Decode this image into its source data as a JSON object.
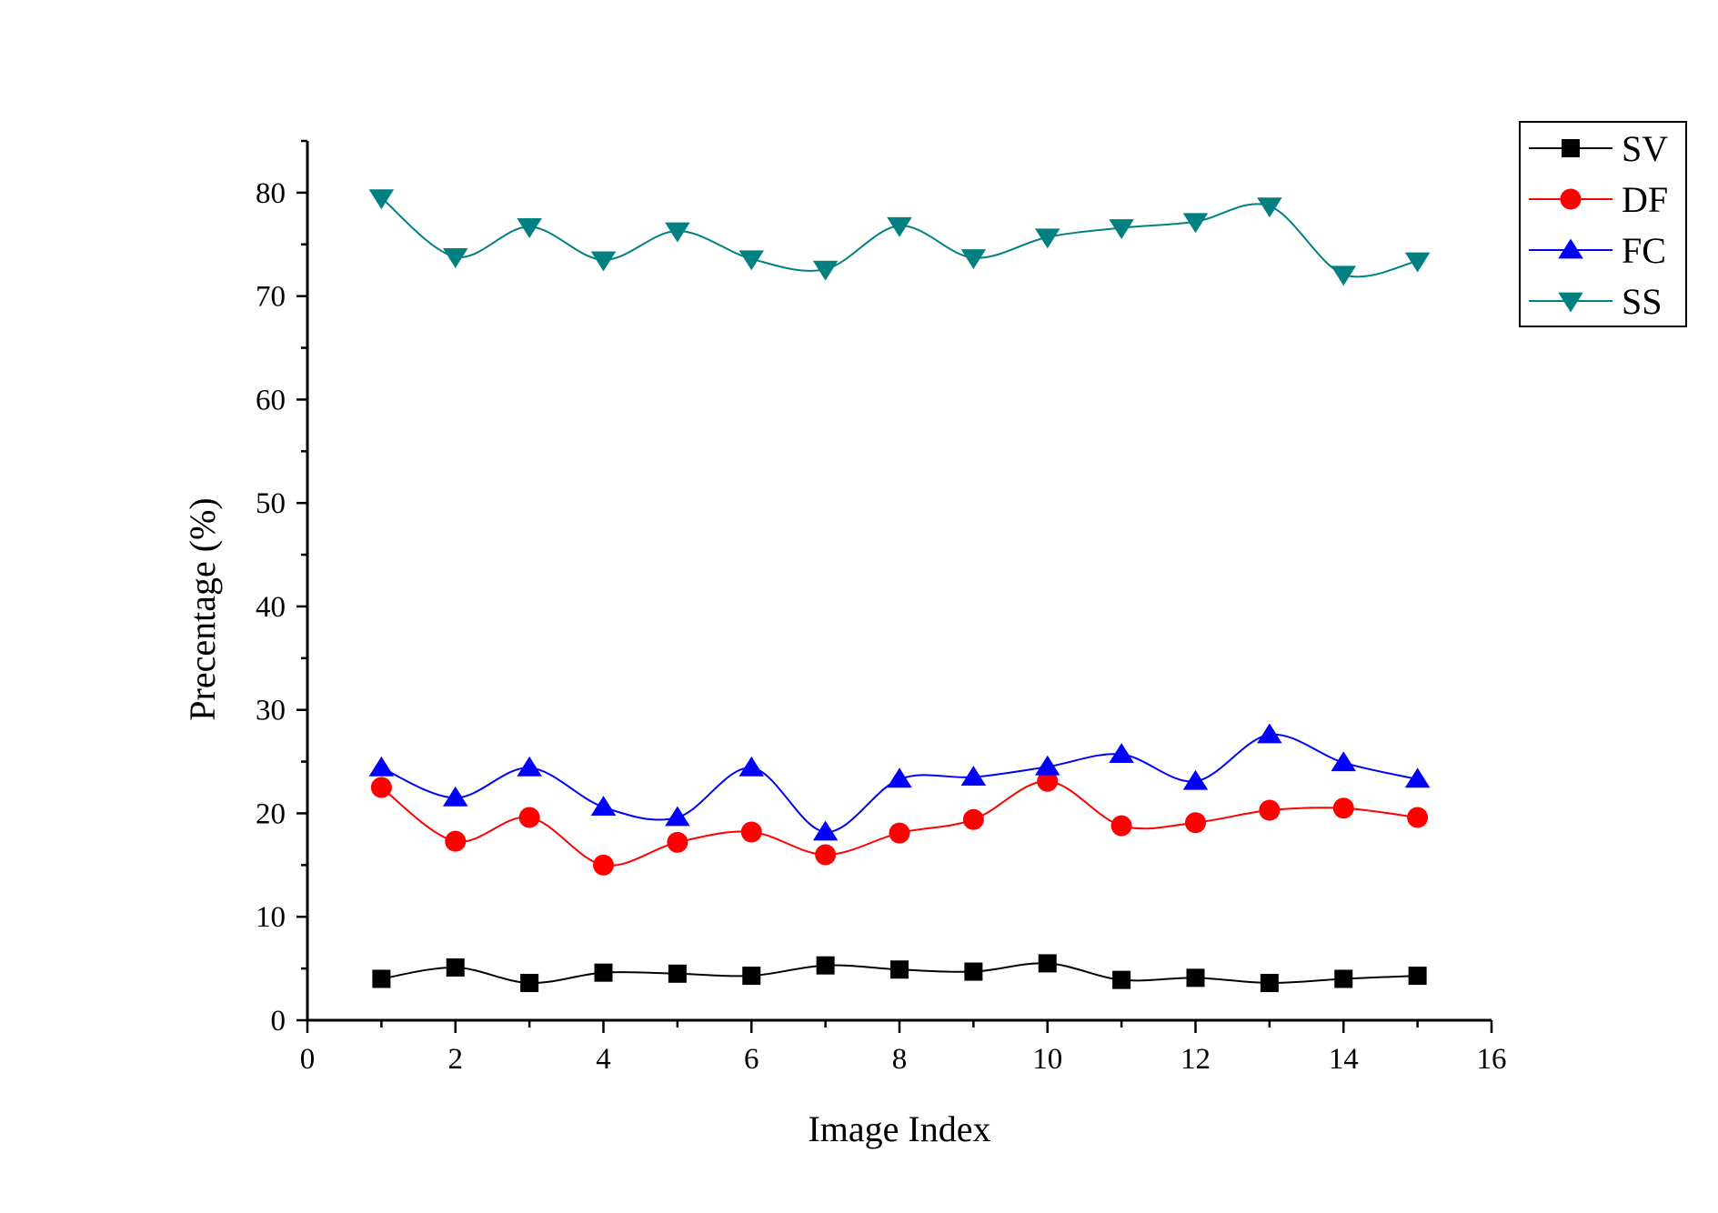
{
  "chart_data": {
    "type": "line",
    "title": "",
    "xlabel": "Image Index",
    "ylabel": "Precentage (%)",
    "xlim": [
      0,
      16
    ],
    "ylim": [
      0,
      85
    ],
    "x_ticks": [
      "0",
      "2",
      "4",
      "6",
      "8",
      "10",
      "12",
      "14",
      "16"
    ],
    "y_ticks": [
      "0",
      "10",
      "20",
      "30",
      "40",
      "50",
      "60",
      "70",
      "80"
    ],
    "grid": false,
    "legend_position": "top-right",
    "x": [
      1,
      2,
      3,
      4,
      5,
      6,
      7,
      8,
      9,
      10,
      11,
      12,
      13,
      14,
      15
    ],
    "series": [
      {
        "name": "SV",
        "color": "#000000",
        "marker": "square",
        "values": [
          4.0,
          5.1,
          3.6,
          4.6,
          4.5,
          4.3,
          5.3,
          4.9,
          4.7,
          5.5,
          3.9,
          4.1,
          3.6,
          4.0,
          4.3
        ]
      },
      {
        "name": "DF",
        "color": "#ff0000",
        "marker": "circle",
        "values": [
          22.5,
          17.3,
          19.6,
          15.0,
          17.2,
          18.2,
          16.0,
          18.1,
          19.4,
          23.1,
          18.8,
          19.1,
          20.3,
          20.5,
          19.6
        ]
      },
      {
        "name": "FC",
        "color": "#0000ff",
        "marker": "triangle-up",
        "values": [
          24.4,
          21.5,
          24.4,
          20.6,
          19.6,
          24.4,
          18.2,
          23.3,
          23.5,
          24.5,
          25.7,
          23.1,
          27.6,
          24.9,
          23.3
        ]
      },
      {
        "name": "SS",
        "color": "#008080",
        "marker": "triangle-down",
        "values": [
          79.5,
          73.8,
          76.7,
          73.5,
          76.3,
          73.6,
          72.6,
          76.8,
          73.7,
          75.7,
          76.6,
          77.2,
          78.7,
          72.1,
          73.4
        ]
      }
    ]
  }
}
